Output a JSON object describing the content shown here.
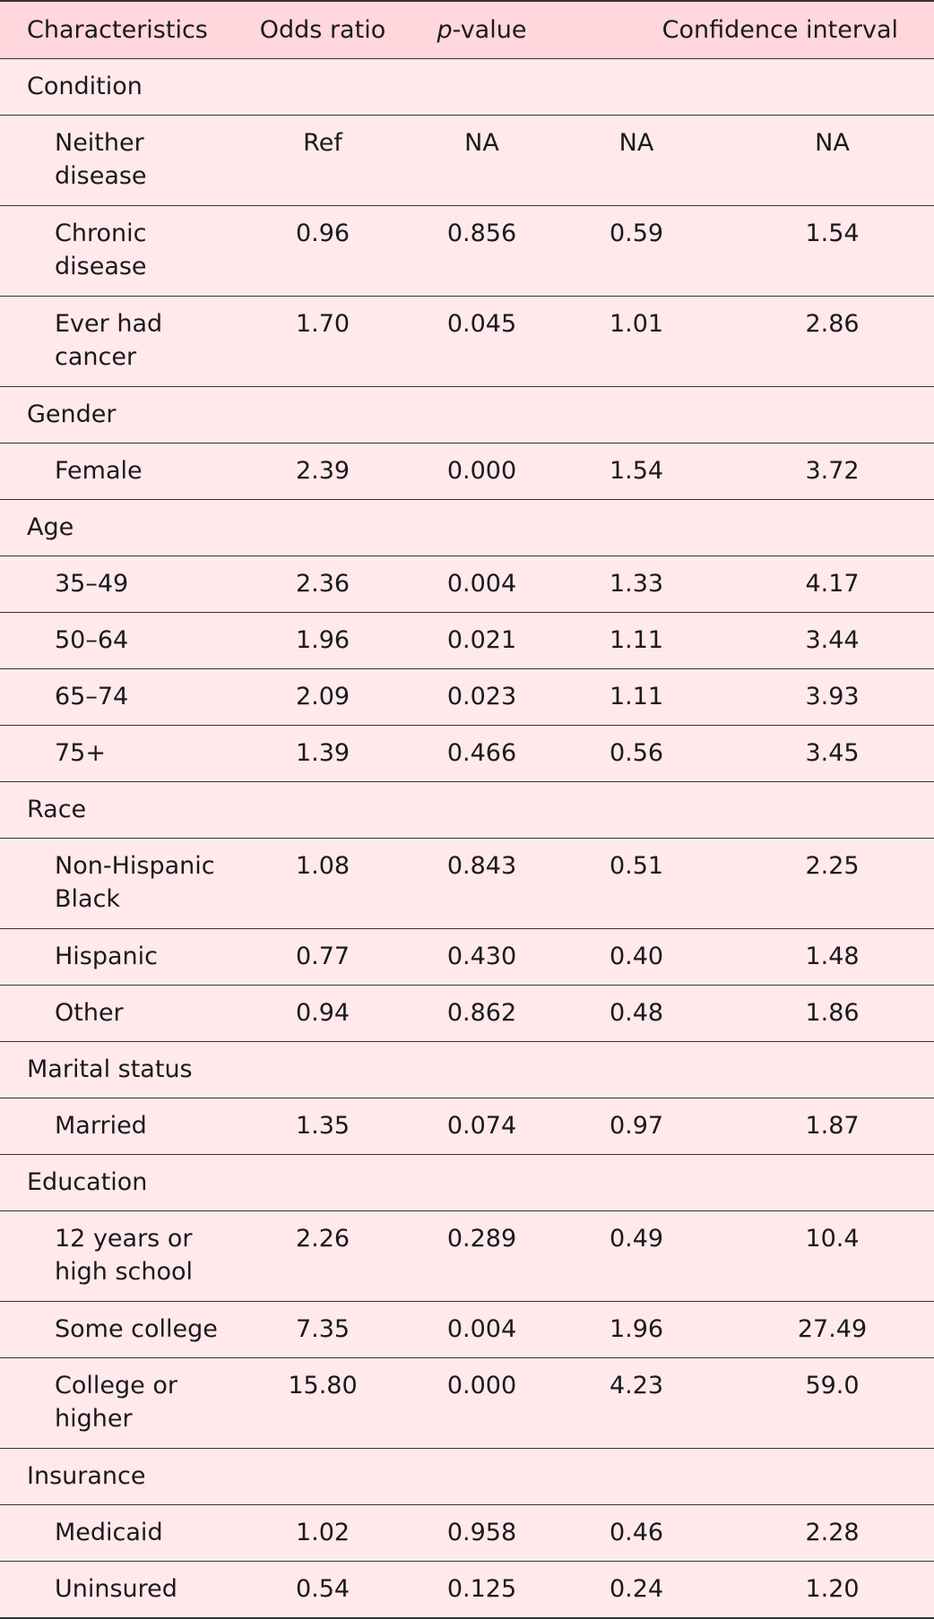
{
  "headers": {
    "characteristics": "Characteristics",
    "odds_ratio": "Odds ratio",
    "p_prefix": "p",
    "p_suffix": "-value",
    "confidence_interval": "Confidence interval"
  },
  "groups": [
    {
      "name": "Condition",
      "rows": [
        {
          "label": [
            "Neither",
            "disease"
          ],
          "or": "Ref",
          "p": "NA",
          "ci_low": "NA",
          "ci_high": "NA"
        },
        {
          "label": [
            "Chronic",
            "disease"
          ],
          "or": "0.96",
          "p": "0.856",
          "ci_low": "0.59",
          "ci_high": "1.54"
        },
        {
          "label": [
            "Ever had",
            "cancer"
          ],
          "or": "1.70",
          "p": "0.045",
          "ci_low": "1.01",
          "ci_high": "2.86"
        }
      ]
    },
    {
      "name": "Gender",
      "rows": [
        {
          "label": [
            "Female"
          ],
          "or": "2.39",
          "p": "0.000",
          "ci_low": "1.54",
          "ci_high": "3.72"
        }
      ]
    },
    {
      "name": "Age",
      "rows": [
        {
          "label": [
            "35–49"
          ],
          "or": "2.36",
          "p": "0.004",
          "ci_low": "1.33",
          "ci_high": "4.17"
        },
        {
          "label": [
            "50–64"
          ],
          "or": "1.96",
          "p": "0.021",
          "ci_low": "1.11",
          "ci_high": "3.44"
        },
        {
          "label": [
            "65–74"
          ],
          "or": "2.09",
          "p": "0.023",
          "ci_low": "1.11",
          "ci_high": "3.93"
        },
        {
          "label": [
            "75+"
          ],
          "or": "1.39",
          "p": "0.466",
          "ci_low": "0.56",
          "ci_high": "3.45"
        }
      ]
    },
    {
      "name": "Race",
      "rows": [
        {
          "label": [
            "Non-Hispanic",
            "Black"
          ],
          "or": "1.08",
          "p": "0.843",
          "ci_low": "0.51",
          "ci_high": "2.25"
        },
        {
          "label": [
            "Hispanic"
          ],
          "or": "0.77",
          "p": "0.430",
          "ci_low": "0.40",
          "ci_high": "1.48"
        },
        {
          "label": [
            "Other"
          ],
          "or": "0.94",
          "p": "0.862",
          "ci_low": "0.48",
          "ci_high": "1.86"
        }
      ]
    },
    {
      "name": "Marital status",
      "rows": [
        {
          "label": [
            "Married"
          ],
          "or": "1.35",
          "p": "0.074",
          "ci_low": "0.97",
          "ci_high": "1.87"
        }
      ]
    },
    {
      "name": "Education",
      "rows": [
        {
          "label": [
            "12 years or",
            "high school"
          ],
          "or": "2.26",
          "p": "0.289",
          "ci_low": "0.49",
          "ci_high": "10.4"
        },
        {
          "label": [
            "Some college"
          ],
          "or": "7.35",
          "p": "0.004",
          "ci_low": "1.96",
          "ci_high": "27.49"
        },
        {
          "label": [
            "College or",
            "higher"
          ],
          "or": "15.80",
          "p": "0.000",
          "ci_low": "4.23",
          "ci_high": "59.0"
        }
      ]
    },
    {
      "name": "Insurance",
      "rows": [
        {
          "label": [
            "Medicaid"
          ],
          "or": "1.02",
          "p": "0.958",
          "ci_low": "0.46",
          "ci_high": "2.28"
        },
        {
          "label": [
            "Uninsured"
          ],
          "or": "0.54",
          "p": "0.125",
          "ci_low": "0.24",
          "ci_high": "1.20"
        }
      ]
    }
  ]
}
